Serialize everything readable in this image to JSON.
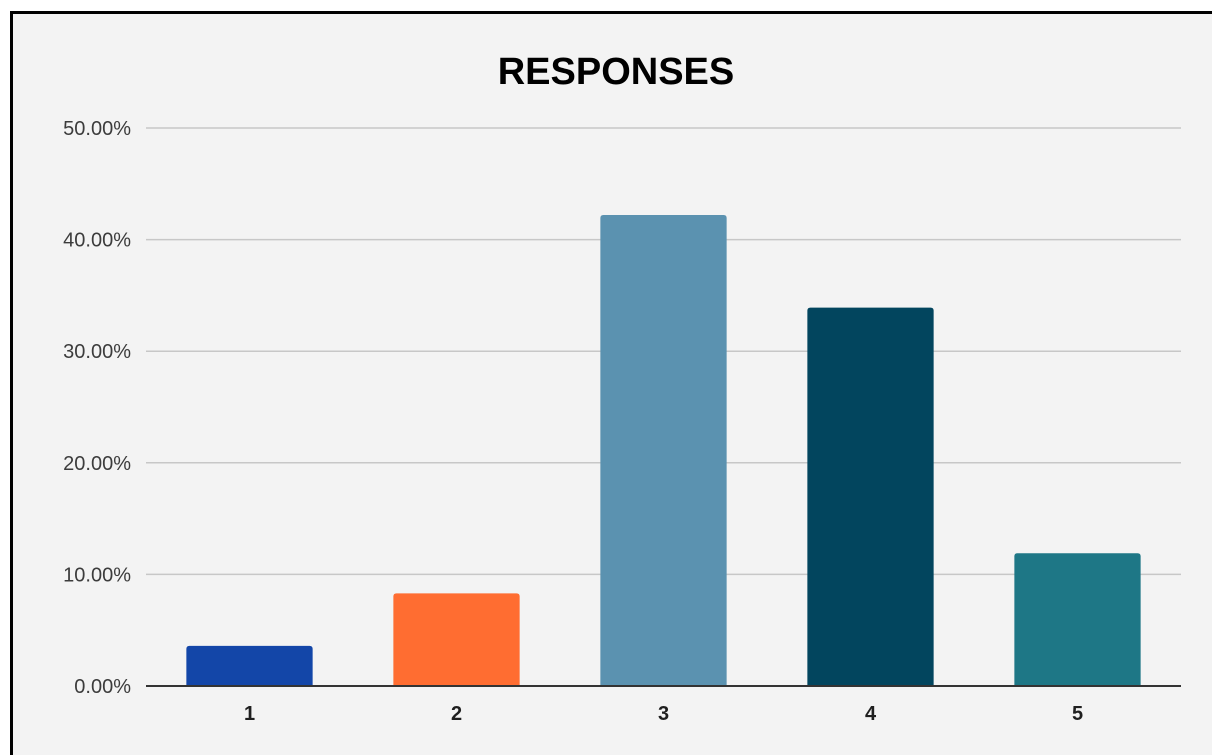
{
  "chart_data": {
    "type": "bar",
    "title": "RESPONSES",
    "xlabel": "",
    "ylabel": "",
    "categories": [
      "1",
      "2",
      "3",
      "4",
      "5"
    ],
    "values": [
      3.6,
      8.3,
      42.2,
      33.9,
      11.9
    ],
    "value_unit": "percent",
    "ylim": [
      0,
      50
    ],
    "yticks": [
      0,
      10,
      20,
      30,
      40,
      50
    ],
    "ytick_labels": [
      "0.00%",
      "10.00%",
      "20.00%",
      "30.00%",
      "40.00%",
      "50.00%"
    ],
    "bar_colors": [
      "#1346a8",
      "#ff6d31",
      "#5b92b0",
      "#02455e",
      "#1e7786"
    ],
    "grid": true,
    "legend": "none"
  }
}
